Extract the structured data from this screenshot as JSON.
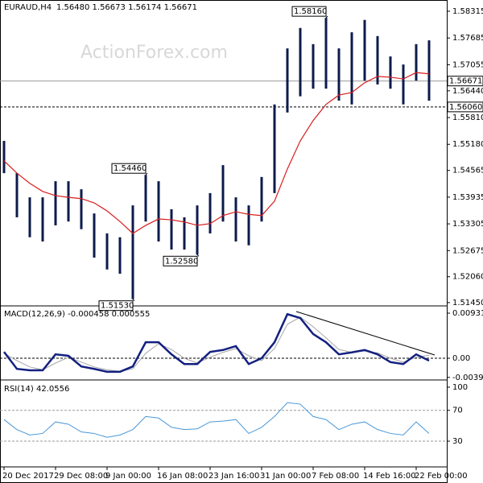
{
  "chart_data": [
    {
      "type": "hilo",
      "title": "EURAUD,H4",
      "quote": "1.56480 1.56673 1.56174 1.56671",
      "watermark": "ActionForex.com",
      "categories": [
        "20 Dec 2017",
        null,
        null,
        null,
        "29 Dec 08:00",
        null,
        null,
        null,
        "9 Jan 00:00",
        null,
        null,
        null,
        "16 Jan 08:00",
        null,
        null,
        null,
        "23 Jan 16:00",
        null,
        null,
        null,
        "31 Jan 00:00",
        null,
        null,
        null,
        "7 Feb 08:00",
        null,
        null,
        null,
        "14 Feb 16:00",
        null,
        null,
        null,
        "22 Feb 00:00",
        null
      ],
      "highs": [
        1.5526,
        1.545,
        1.5393,
        1.5393,
        1.5431,
        1.5431,
        1.5412,
        1.5355,
        1.5308,
        1.5299,
        1.5374,
        1.5446,
        1.5431,
        1.5365,
        1.5346,
        1.5374,
        1.5403,
        1.5469,
        1.5393,
        1.5374,
        1.5441,
        1.5612,
        1.5744,
        1.5792,
        1.5754,
        1.5816,
        1.5744,
        1.5782,
        1.5811,
        1.5773,
        1.5725,
        1.5706,
        1.5754,
        1.5763
      ],
      "lows": [
        1.545,
        1.5346,
        1.5299,
        1.5289,
        1.5327,
        1.5336,
        1.5318,
        1.5251,
        1.5223,
        1.5213,
        1.5153,
        1.5336,
        1.5289,
        1.527,
        1.527,
        1.5258,
        1.5308,
        1.5336,
        1.5289,
        1.528,
        1.5336,
        1.5403,
        1.5593,
        1.5631,
        1.5649,
        1.5649,
        1.5621,
        1.5612,
        1.5668,
        1.5659,
        1.5649,
        1.5612,
        1.5668,
        1.5621
      ],
      "color": "#0d1b4c",
      "ma": {
        "color": "#d81e1e",
        "values": [
          1.5479,
          1.545,
          1.5426,
          1.5407,
          1.5397,
          1.5393,
          1.539,
          1.538,
          1.5361,
          1.5336,
          1.5308,
          1.5327,
          1.5342,
          1.534,
          1.5335,
          1.5327,
          1.5331,
          1.535,
          1.5359,
          1.5353,
          1.535,
          1.5384,
          1.546,
          1.5526,
          1.5574,
          1.5612,
          1.5634,
          1.564,
          1.5663,
          1.5678,
          1.5676,
          1.5672,
          1.5687,
          1.5684
        ]
      },
      "ylim": [
        1.5141,
        1.5858
      ],
      "yticks": [
        1.58315,
        1.57685,
        1.57055,
        {
          "value": 1.5644,
          "label": "1.56440"
        },
        {
          "value": 1.5581,
          "label": "1.55810"
        },
        {
          "value": 1.5518,
          "label": "1.55180"
        },
        1.54565,
        1.53935,
        1.53305,
        1.52675,
        {
          "value": 1.5206,
          "label": "1.52060"
        },
        {
          "value": 1.5145,
          "label": "1.51450"
        }
      ],
      "price_lines": [
        {
          "value": 1.56671,
          "label": "1.56671",
          "style": "solid"
        },
        {
          "value": 1.5606,
          "label": "1.56060",
          "style": "dashed"
        }
      ],
      "annotations": [
        {
          "value": 1.5816,
          "label": "1.58160",
          "at": "high"
        },
        {
          "value": 1.5446,
          "label": "1.54460",
          "at": "high"
        },
        {
          "value": 1.5258,
          "label": "1.52580",
          "at": "low"
        },
        {
          "value": 1.5153,
          "label": "1.51530",
          "at": "low"
        }
      ]
    },
    {
      "type": "macd",
      "title": "MACD(12,26,9) -0.000458 0.000555",
      "macd": {
        "color": "#142080",
        "values": [
          0.0013,
          -0.0022,
          -0.0025,
          -0.0025,
          0.0008,
          0.0005,
          -0.0017,
          -0.0022,
          -0.0028,
          -0.0028,
          -0.0017,
          0.0033,
          0.0033,
          0.0008,
          -0.0012,
          -0.0012,
          0.0013,
          0.0017,
          0.0025,
          -0.0012,
          0.0,
          0.0033,
          0.0091,
          0.0083,
          0.005,
          0.0033,
          0.0008,
          0.0012,
          0.0017,
          0.0008,
          -0.0008,
          -0.0012,
          0.0008,
          -0.0005
        ]
      },
      "signal": {
        "color": "#a8a8a8",
        "values": [
          0.001,
          -0.0005,
          -0.0018,
          -0.0024,
          -0.001,
          0.0002,
          -0.0008,
          -0.0018,
          -0.0024,
          -0.0027,
          -0.0022,
          0.001,
          0.003,
          0.0018,
          0.0,
          -0.001,
          0.0002,
          0.0012,
          0.002,
          0.0005,
          -0.0005,
          0.002,
          0.007,
          0.0085,
          0.0065,
          0.0042,
          0.0018,
          0.0012,
          0.0015,
          0.0011,
          0.0,
          -0.0008,
          0.0002,
          0.0006
        ]
      },
      "ylim": [
        -0.00416,
        0.01048
      ],
      "yticks": [
        0.009312,
        {
          "value": 0,
          "label": "0.00"
        },
        -0.003958
      ],
      "zero_line": true
    },
    {
      "type": "rsi",
      "title": "RSI(14) 42.0556",
      "color": "#4a98d8",
      "values": [
        58,
        45,
        38,
        40,
        55,
        52,
        42,
        40,
        35,
        38,
        45,
        62,
        60,
        48,
        45,
        46,
        55,
        56,
        58,
        40,
        48,
        62,
        80,
        78,
        62,
        58,
        45,
        52,
        55,
        45,
        40,
        38,
        55,
        40
      ],
      "ylim": [
        -3.4,
        107.3
      ],
      "yticks": [
        100,
        70,
        30
      ],
      "dashed_levels": [
        70,
        30
      ]
    }
  ]
}
